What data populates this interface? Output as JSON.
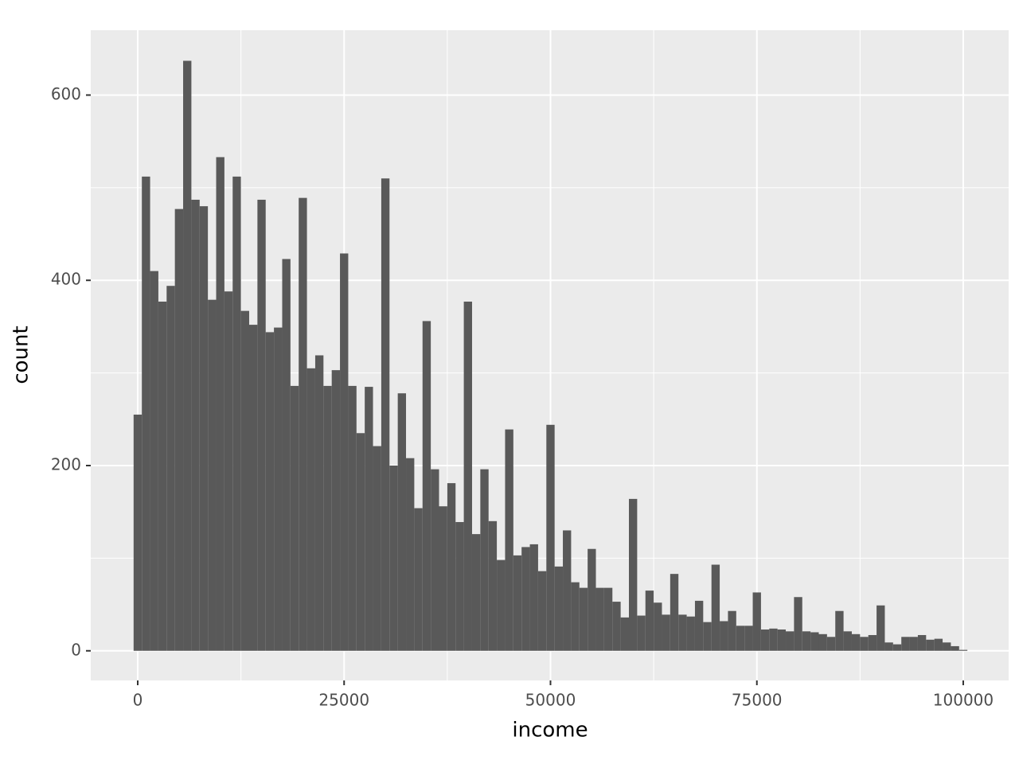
{
  "chart_data": {
    "type": "histogram",
    "x_label": "income",
    "y_label": "count",
    "bins": [
      -500,
      500,
      1500,
      2500,
      3500,
      4500,
      5500,
      6500,
      7500,
      8500,
      9500,
      10500,
      11500,
      12500,
      13500,
      14500,
      15500,
      16500,
      17500,
      18500,
      19500,
      20500,
      21500,
      22500,
      23500,
      24500,
      25500,
      26500,
      27500,
      28500,
      29500,
      30500,
      31500,
      32500,
      33500,
      34500,
      35500,
      36500,
      37500,
      38500,
      39500,
      40500,
      41500,
      42500,
      43500,
      44500,
      45500,
      46500,
      47500,
      48500,
      49500,
      50500,
      51500,
      52500,
      53500,
      54500,
      55500,
      56500,
      57500,
      58500,
      59500,
      60500,
      61500,
      62500,
      63500,
      64500,
      65500,
      66500,
      67500,
      68500,
      69500,
      70500,
      71500,
      72500,
      73500,
      74500,
      75500,
      76500,
      77500,
      78500,
      79500,
      80500,
      81500,
      82500,
      83500,
      84500,
      85500,
      86500,
      87500,
      88500,
      89500,
      90500,
      91500,
      92500,
      93500,
      94500,
      95500,
      96500,
      97500,
      98500,
      99500,
      100500
    ],
    "counts": [
      255,
      512,
      410,
      377,
      394,
      477,
      637,
      487,
      480,
      379,
      533,
      388,
      512,
      367,
      352,
      487,
      344,
      349,
      423,
      286,
      489,
      305,
      319,
      286,
      303,
      429,
      286,
      235,
      285,
      221,
      510,
      200,
      278,
      208,
      154,
      356,
      196,
      156,
      181,
      139,
      377,
      126,
      196,
      140,
      98,
      239,
      103,
      112,
      115,
      86,
      244,
      91,
      130,
      74,
      68,
      110,
      68,
      68,
      53,
      36,
      164,
      38,
      65,
      52,
      39,
      83,
      39,
      37,
      54,
      31,
      93,
      32,
      43,
      27,
      27,
      63,
      23,
      24,
      23,
      21,
      58,
      21,
      20,
      18,
      15,
      43,
      21,
      18,
      15,
      17,
      49,
      9,
      7,
      15,
      15,
      17,
      12,
      13,
      9,
      5,
      1
    ],
    "color": "#595959",
    "xlim": [
      -5690,
      105500
    ],
    "ylim": [
      -32,
      670
    ],
    "xticks": [
      0,
      25000,
      50000,
      75000,
      100000
    ],
    "yticks": [
      0,
      200,
      400,
      600
    ],
    "grid": true
  }
}
